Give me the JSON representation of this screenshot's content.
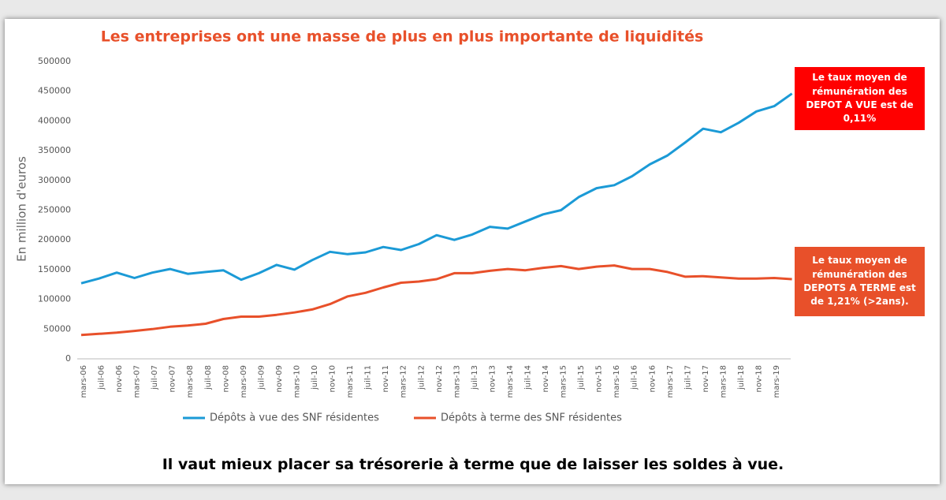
{
  "chart_data": {
    "type": "line",
    "title": "Les entreprises ont une masse de plus en plus importante de liquidités",
    "ylabel": "En million d'euros",
    "categories": [
      "mars-06",
      "juil-06",
      "nov-06",
      "mars-07",
      "juil-07",
      "nov-07",
      "mars-08",
      "juil-08",
      "nov-08",
      "mars-09",
      "juil-09",
      "nov-09",
      "mars-10",
      "juil-10",
      "nov-10",
      "mars-11",
      "juil-11",
      "nov-11",
      "mars-12",
      "juil-12",
      "nov-12",
      "mars-13",
      "juil-13",
      "nov-13",
      "mars-14",
      "juil-14",
      "nov-14",
      "mars-15",
      "juil-15",
      "nov-15",
      "mars-16",
      "juil-16",
      "nov-16",
      "mars-17",
      "juil-17",
      "nov-17",
      "mars-18",
      "juil-18",
      "nov-18",
      "mars-19",
      null
    ],
    "series": [
      {
        "name": "Dépôts à vue des SNF résidentes",
        "color": "#1b9ad6",
        "values": [
          127000,
          135000,
          145000,
          136000,
          145000,
          151000,
          143000,
          146000,
          149000,
          133000,
          144000,
          158000,
          150000,
          166000,
          180000,
          176000,
          179000,
          188000,
          183000,
          193000,
          208000,
          200000,
          209000,
          222000,
          219000,
          231000,
          243000,
          250000,
          272000,
          287000,
          292000,
          307000,
          327000,
          342000,
          364000,
          387000,
          381000,
          397000,
          416000,
          425000,
          446000
        ]
      },
      {
        "name": "Dépôts à terme des SNF résidentes",
        "color": "#e8502a",
        "values": [
          40000,
          42000,
          44000,
          47000,
          50000,
          54000,
          56000,
          59000,
          67000,
          71000,
          71000,
          74000,
          78000,
          83000,
          92000,
          105000,
          111000,
          120000,
          128000,
          130000,
          134000,
          144000,
          144000,
          148000,
          151000,
          149000,
          153000,
          156000,
          151000,
          155000,
          157000,
          151000,
          151000,
          146000,
          138000,
          139000,
          137000,
          135000,
          135000,
          136000,
          134000
        ]
      }
    ],
    "ylim": [
      0,
      500000
    ],
    "yticks": [
      0,
      50000,
      100000,
      150000,
      200000,
      250000,
      300000,
      350000,
      400000,
      450000,
      500000
    ],
    "legend": "bottom",
    "annotations": [
      {
        "text": "Le taux moyen de rémunération des DEPOT A VUE est de 0,11%",
        "color": "#ff0000"
      },
      {
        "text": "Le taux moyen de rémunération des DEPOTS A TERME est de 1,21% (>2ans).",
        "color": "#e8502a"
      }
    ]
  },
  "footer": "Il vaut mieux placer sa trésorerie à terme que de laisser les soldes à vue."
}
